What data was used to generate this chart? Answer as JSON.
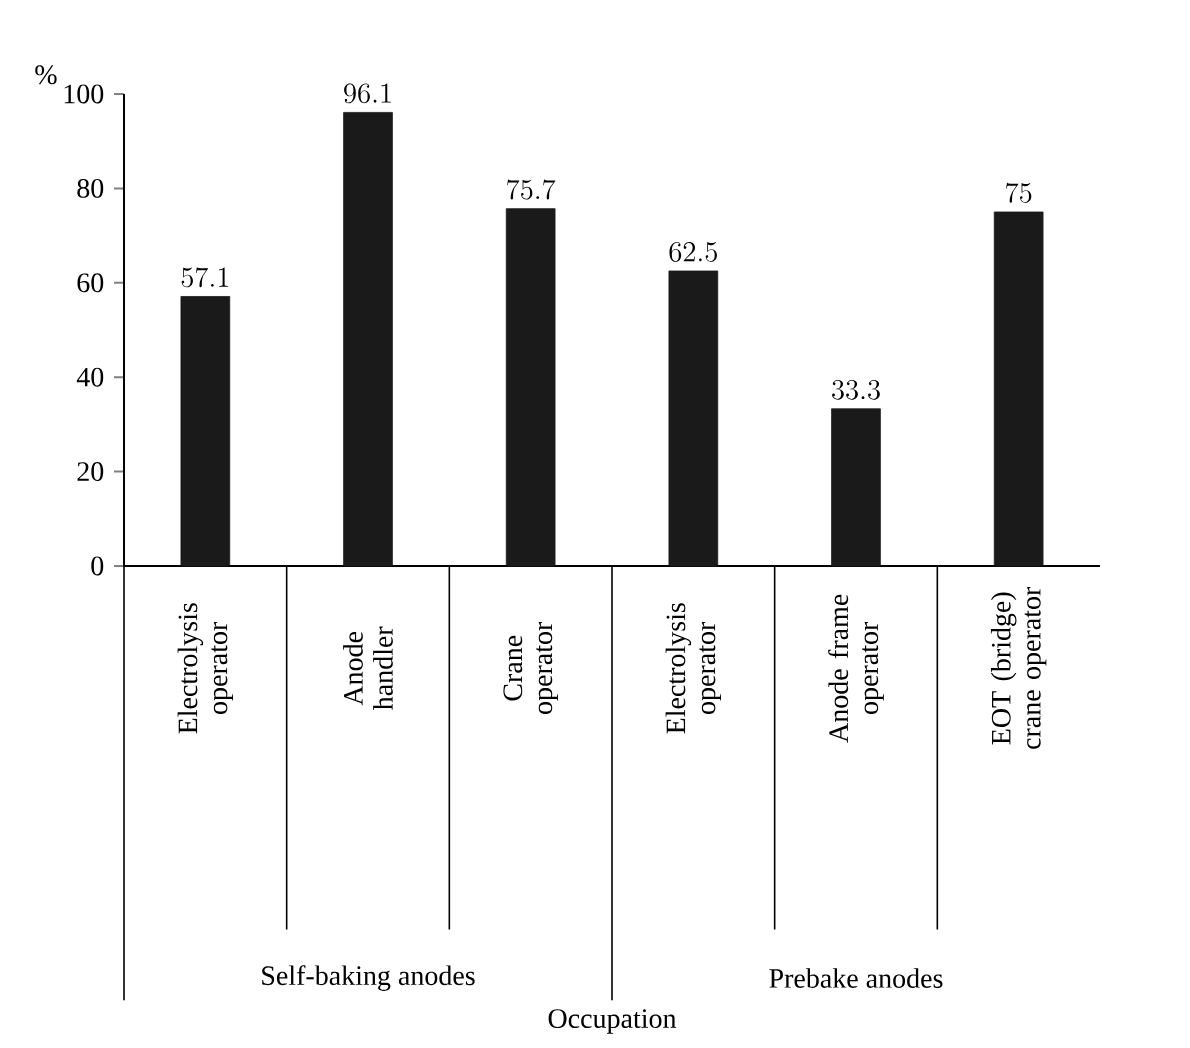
{
  "chart_data": {
    "type": "bar",
    "ylabel": "%",
    "categories": [
      "Electrolysis operator",
      "Anode handler",
      "Crane operator",
      "Electrolysis operator",
      "Anode frame operator",
      "EOT (bridge) crane operator"
    ],
    "values": [
      57.1,
      96.1,
      75.7,
      62.5,
      33.3,
      75
    ],
    "color": "#1a1a1a",
    "ylim": [
      0,
      100
    ],
    "yticks": [
      0,
      20,
      40,
      60,
      80,
      100
    ],
    "data_labels": true,
    "annotations": [
      "Self-baking anodes",
      "Prebake anodes",
      "Occupation"
    ]
  }
}
